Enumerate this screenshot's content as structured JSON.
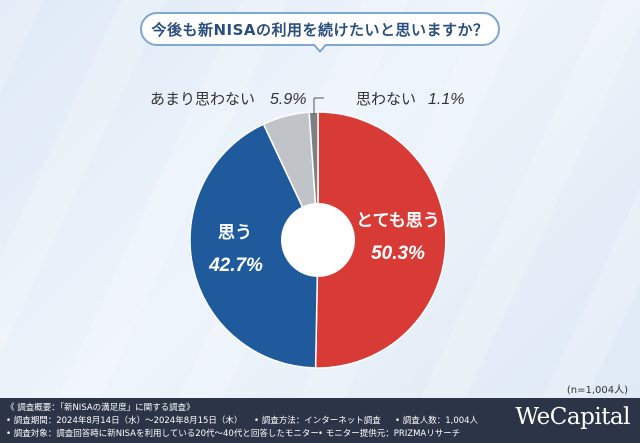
{
  "title": "今後も新NISAの利用を続けたいと思いますか？",
  "chart_data": {
    "type": "pie",
    "title": "今後も新NISAの利用を続けたいと思いますか？",
    "slices": [
      {
        "label": "とても思う",
        "value": 50.3,
        "display": "50.3%",
        "color": "#d83a35"
      },
      {
        "label": "思う",
        "value": 42.7,
        "display": "42.7%",
        "color": "#1f5a9c"
      },
      {
        "label": "あまり思わない",
        "value": 5.9,
        "display": "5.9%",
        "color": "#c0c4c8"
      },
      {
        "label": "思わない",
        "value": 1.1,
        "display": "1.1%",
        "color": "#7d8085"
      }
    ],
    "donut": true,
    "start": "12 o'clock, clockwise"
  },
  "sample_note": "(n=1,004人)",
  "footer": {
    "overview": "《 調査概要：「新NISAの満足度」に関する調査》",
    "period": "• 調査期間：2024年8月14日（水）〜2024年8月15日（木）",
    "method": "• 調査方法：インターネット調査",
    "count": "• 調査人数：1,004人",
    "target": "• 調査対象：調査回答時に新NISAを利用している20代〜40代と回答したモニター",
    "provider": "• モニター提供元：PRIZMAリサーチ",
    "brand": "WeCapital"
  }
}
